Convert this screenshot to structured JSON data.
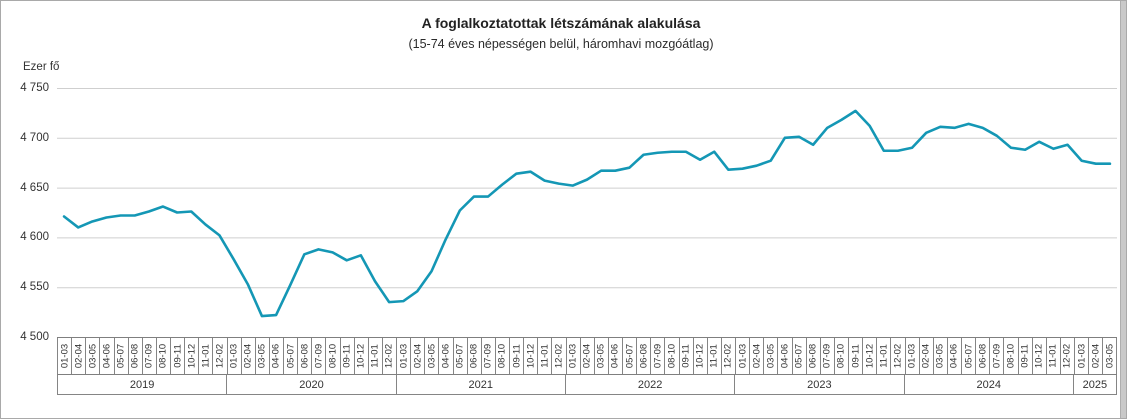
{
  "header": {
    "title": "A foglalkoztatottak létszámának alakulása",
    "subtitle": "(15-74 éves népességen belül, háromhavi mozgóátlag)"
  },
  "y_axis": {
    "unit_label": "Ezer fő",
    "tick_labels": [
      "4 750",
      "4 700",
      "4 650",
      "4 600",
      "4 550",
      "4 500"
    ]
  },
  "colors": {
    "line": "#1497b5",
    "grid": "#cfcfcf",
    "axis": "#7f7f7f",
    "text": "#333333"
  },
  "chart_data": {
    "type": "line",
    "title": "A foglalkoztatottak létszámának alakulása",
    "subtitle": "(15-74 éves népességen belül, háromhavi mozgóátlag)",
    "ylabel": "Ezer fő",
    "ylim": [
      4500,
      4750
    ],
    "ytick_step": 50,
    "grid": true,
    "legend": false,
    "year_groups": [
      {
        "year": "2019",
        "labels": [
          "01-03",
          "02-04",
          "03-05",
          "04-06",
          "05-07",
          "06-08",
          "07-09",
          "08-10",
          "09-11",
          "10-12",
          "11-01",
          "12-02"
        ],
        "values": [
          4621,
          4610,
          4616,
          4620,
          4622,
          4622,
          4626,
          4631,
          4625,
          4626,
          4613,
          4602
        ]
      },
      {
        "year": "2020",
        "labels": [
          "01-03",
          "02-04",
          "03-05",
          "04-06",
          "05-07",
          "06-08",
          "07-09",
          "08-10",
          "09-11",
          "10-12",
          "11-01",
          "12-02"
        ],
        "values": [
          4578,
          4553,
          4521,
          4522,
          4552,
          4583,
          4588,
          4585,
          4577,
          4582,
          4556,
          4535
        ]
      },
      {
        "year": "2021",
        "labels": [
          "01-03",
          "02-04",
          "03-05",
          "04-06",
          "05-07",
          "06-08",
          "07-09",
          "08-10",
          "09-11",
          "10-12",
          "11-01",
          "12-02"
        ],
        "values": [
          4536,
          4546,
          4566,
          4598,
          4627,
          4641,
          4641,
          4653,
          4664,
          4666,
          4657,
          4654
        ]
      },
      {
        "year": "2022",
        "labels": [
          "01-03",
          "02-04",
          "03-05",
          "04-06",
          "05-07",
          "06-08",
          "07-09",
          "08-10",
          "09-11",
          "10-12",
          "11-01",
          "12-02"
        ],
        "values": [
          4652,
          4658,
          4667,
          4667,
          4670,
          4683,
          4685,
          4686,
          4686,
          4678,
          4686,
          4668
        ]
      },
      {
        "year": "2023",
        "labels": [
          "01-03",
          "02-04",
          "03-05",
          "04-06",
          "05-07",
          "06-08",
          "07-09",
          "08-10",
          "09-11",
          "10-12",
          "11-01",
          "12-02"
        ],
        "values": [
          4669,
          4672,
          4677,
          4700,
          4701,
          4693,
          4710,
          4718,
          4727,
          4712,
          4687,
          4687
        ]
      },
      {
        "year": "2024",
        "labels": [
          "01-03",
          "02-04",
          "03-05",
          "04-06",
          "05-07",
          "06-08",
          "07-09",
          "08-10",
          "09-11",
          "10-12",
          "11-01",
          "12-02"
        ],
        "values": [
          4690,
          4705,
          4711,
          4710,
          4714,
          4710,
          4702,
          4690,
          4688,
          4696,
          4689,
          4693
        ]
      },
      {
        "year": "2025",
        "labels": [
          "01-03",
          "02-04",
          "03-05"
        ],
        "values": [
          4677,
          4674,
          4674
        ]
      }
    ]
  }
}
